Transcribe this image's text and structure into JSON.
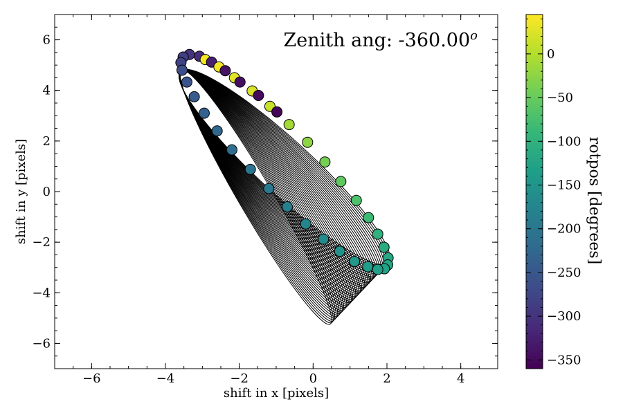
{
  "chart_data": {
    "type": "scatter",
    "title": "Zenith ang: -360.00",
    "title_superscript": "o",
    "xlabel": "shift in x [pixels]",
    "ylabel": "shift in y [pixels]",
    "xlim": [
      -7,
      5
    ],
    "ylim": [
      -7,
      7
    ],
    "x_ticks": [
      -6,
      -4,
      -2,
      0,
      2,
      4
    ],
    "y_ticks": [
      -6,
      -4,
      -2,
      0,
      2,
      4,
      6
    ],
    "x_tick_labels": [
      "−6",
      "−4",
      "−2",
      "0",
      "2",
      "4"
    ],
    "y_tick_labels": [
      "−6",
      "−4",
      "−2",
      "0",
      "2",
      "4",
      "6"
    ],
    "grid": false,
    "colorbar": {
      "label": "rotpos [degrees]",
      "colormap": "viridis",
      "range": [
        -360,
        45
      ],
      "ticks": [
        0,
        -50,
        -100,
        -150,
        -200,
        -250,
        -300,
        -350
      ],
      "tick_labels": [
        "0",
        "−50",
        "−100",
        "−150",
        "−200",
        "−250",
        "−300",
        "−350"
      ]
    },
    "curve_family": {
      "description_style": "thin black closed ellipse-like curves",
      "count": 40,
      "common_point": [
        -3.55,
        4.8
      ],
      "outer_far_point": [
        2.0,
        -2.85
      ],
      "inner_far_point": [
        0.45,
        -5.25
      ]
    },
    "points": [
      {
        "x": -3.35,
        "y": 5.42,
        "rotpos": -300
      },
      {
        "x": -3.08,
        "y": 5.35,
        "rotpos": -310
      },
      {
        "x": -3.52,
        "y": 5.32,
        "rotpos": -285
      },
      {
        "x": -2.92,
        "y": 5.22,
        "rotpos": 40
      },
      {
        "x": -2.75,
        "y": 5.12,
        "rotpos": -325
      },
      {
        "x": -2.55,
        "y": 4.93,
        "rotpos": 38
      },
      {
        "x": -3.58,
        "y": 5.1,
        "rotpos": -278
      },
      {
        "x": -2.38,
        "y": 4.78,
        "rotpos": -340
      },
      {
        "x": -3.55,
        "y": 4.8,
        "rotpos": -265
      },
      {
        "x": -2.13,
        "y": 4.5,
        "rotpos": 28
      },
      {
        "x": -1.98,
        "y": 4.33,
        "rotpos": -345
      },
      {
        "x": -3.42,
        "y": 4.33,
        "rotpos": -255
      },
      {
        "x": -1.65,
        "y": 3.98,
        "rotpos": 22
      },
      {
        "x": -1.48,
        "y": 3.8,
        "rotpos": -350
      },
      {
        "x": -3.22,
        "y": 3.75,
        "rotpos": -245
      },
      {
        "x": -1.17,
        "y": 3.37,
        "rotpos": 12
      },
      {
        "x": -0.98,
        "y": 3.15,
        "rotpos": -355
      },
      {
        "x": -2.95,
        "y": 3.1,
        "rotpos": -235
      },
      {
        "x": -0.65,
        "y": 2.65,
        "rotpos": -10
      },
      {
        "x": -2.6,
        "y": 2.4,
        "rotpos": -225
      },
      {
        "x": -0.15,
        "y": 1.95,
        "rotpos": -25
      },
      {
        "x": -2.2,
        "y": 1.65,
        "rotpos": -215
      },
      {
        "x": 0.32,
        "y": 1.17,
        "rotpos": -40
      },
      {
        "x": -1.7,
        "y": 0.88,
        "rotpos": -205
      },
      {
        "x": 0.75,
        "y": 0.4,
        "rotpos": -55
      },
      {
        "x": -1.2,
        "y": 0.12,
        "rotpos": -195
      },
      {
        "x": 1.17,
        "y": -0.35,
        "rotpos": -70
      },
      {
        "x": -0.7,
        "y": -0.6,
        "rotpos": -185
      },
      {
        "x": 1.5,
        "y": -1.03,
        "rotpos": -85
      },
      {
        "x": -0.2,
        "y": -1.28,
        "rotpos": -175
      },
      {
        "x": 1.75,
        "y": -1.68,
        "rotpos": -100
      },
      {
        "x": 0.28,
        "y": -1.88,
        "rotpos": -165
      },
      {
        "x": 1.92,
        "y": -2.2,
        "rotpos": -110
      },
      {
        "x": 0.72,
        "y": -2.36,
        "rotpos": -155
      },
      {
        "x": 2.03,
        "y": -2.62,
        "rotpos": -118
      },
      {
        "x": 1.12,
        "y": -2.76,
        "rotpos": -145
      },
      {
        "x": 2.02,
        "y": -2.9,
        "rotpos": -124
      },
      {
        "x": 1.48,
        "y": -2.97,
        "rotpos": -135
      },
      {
        "x": 1.93,
        "y": -3.05,
        "rotpos": -128
      },
      {
        "x": 1.75,
        "y": -3.08,
        "rotpos": -131
      }
    ]
  }
}
